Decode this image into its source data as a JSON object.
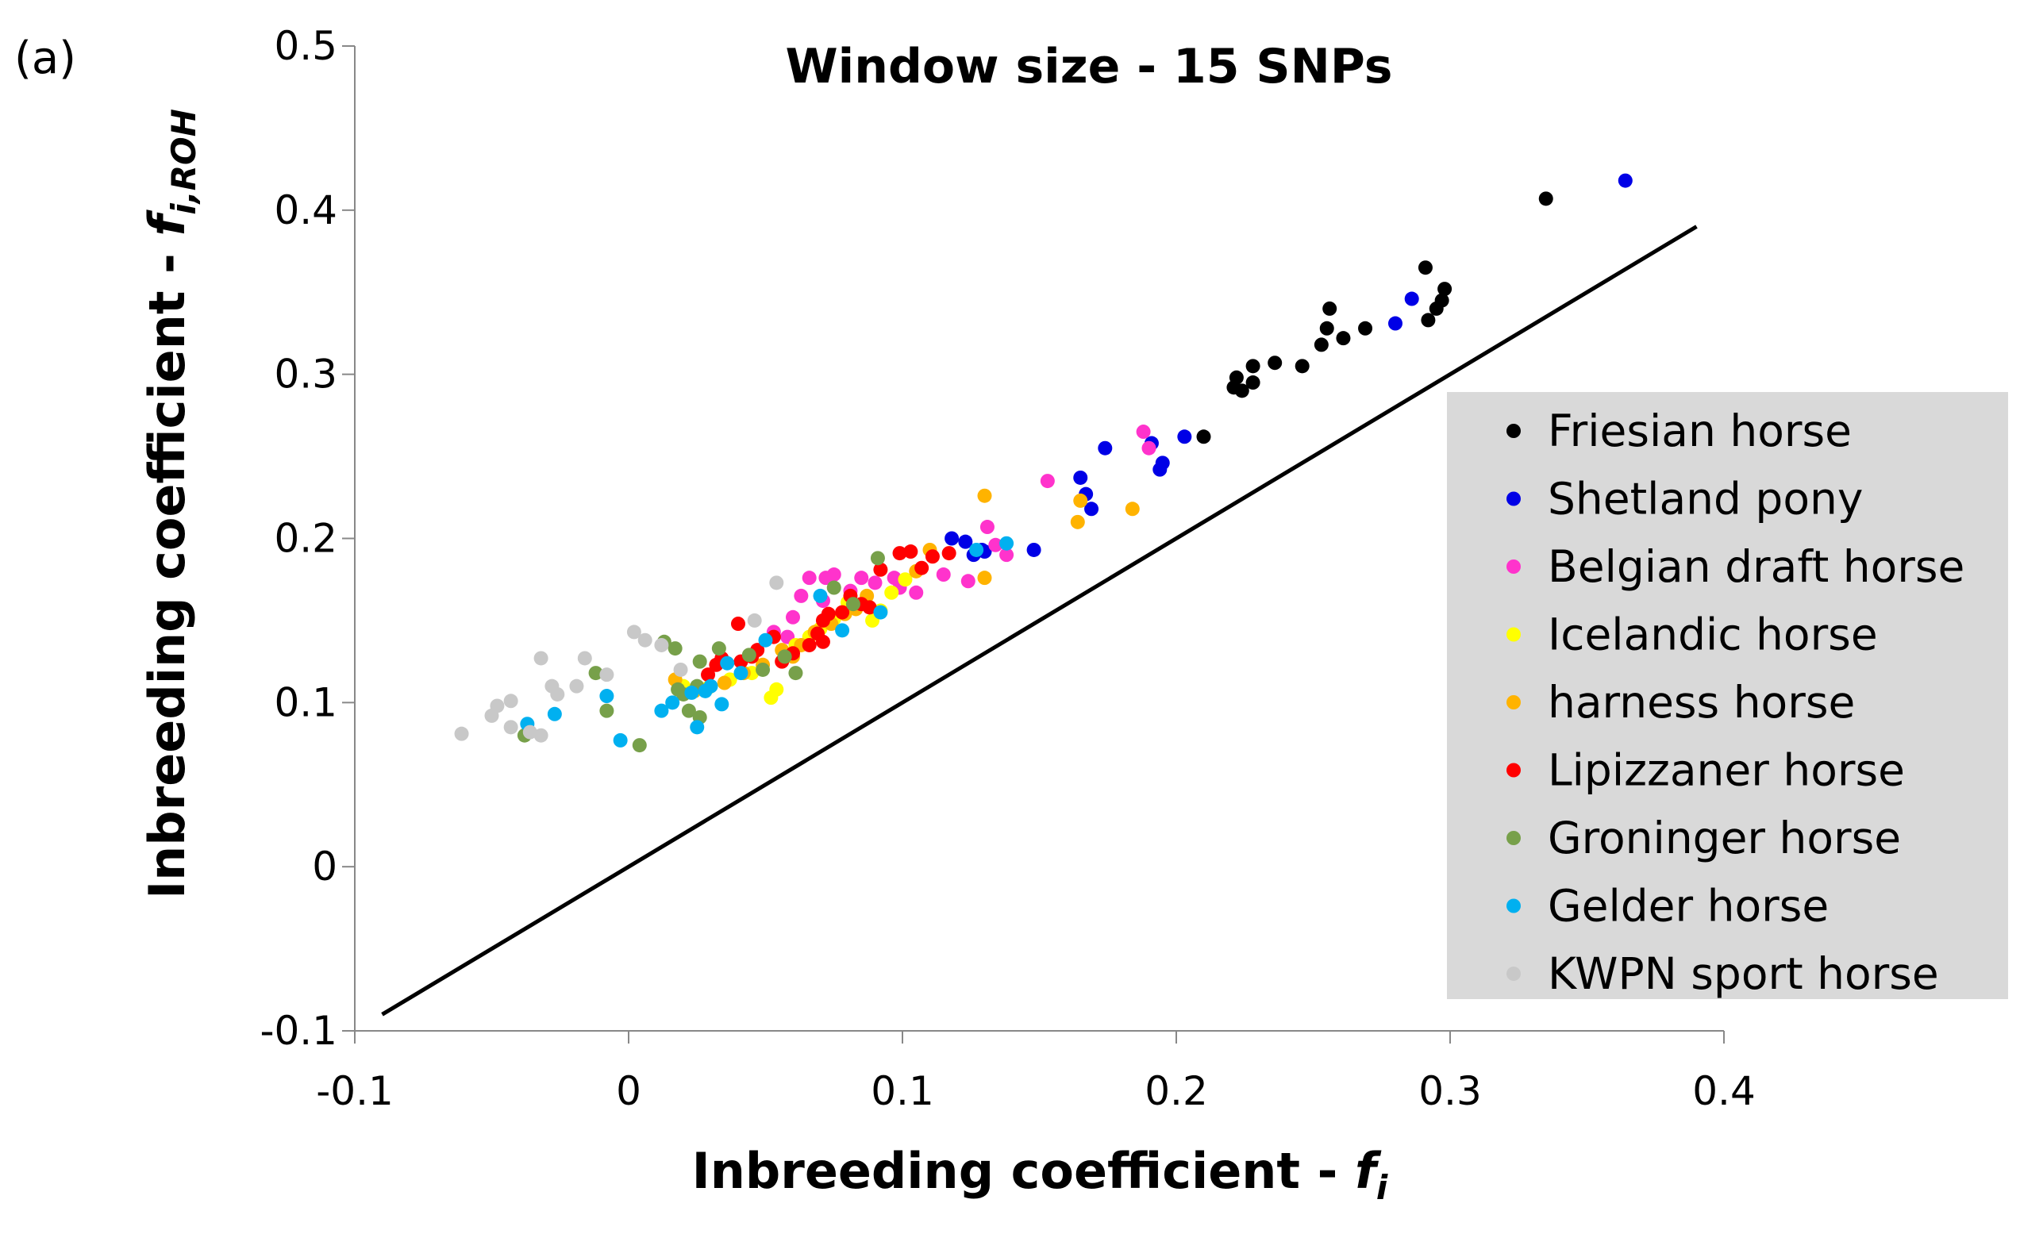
{
  "chart_data": {
    "type": "scatter",
    "panel_label": "(a)",
    "title": "Window size - 15 SNPs",
    "xlabel": "Inbreeding coefficient - ",
    "xlabel_var": "f",
    "xlabel_sub": "i",
    "ylabel": "Inbreeding coefficient - ",
    "ylabel_var": "f",
    "ylabel_sub": "i,ROH",
    "xlim": [
      -0.1,
      0.4
    ],
    "ylim": [
      -0.1,
      0.5
    ],
    "x_ticks": [
      -0.1,
      0,
      0.1,
      0.2,
      0.3,
      0.4
    ],
    "x_tick_labels": [
      "-0.1",
      "0",
      "0.1",
      "0.2",
      "0.3",
      "0.4"
    ],
    "y_ticks": [
      -0.1,
      0,
      0.1,
      0.2,
      0.3,
      0.4,
      0.5
    ],
    "y_tick_labels": [
      "-0.1",
      "0",
      "0.1",
      "0.2",
      "0.3",
      "0.4",
      "0.5"
    ],
    "grid": false,
    "legend_position": "right",
    "reference_line": {
      "x": [
        -0.09,
        0.39
      ],
      "y": [
        -0.09,
        0.39
      ]
    },
    "series": [
      {
        "name": "Friesian horse",
        "color": "#000000",
        "points": [
          [
            0.335,
            0.407
          ],
          [
            0.291,
            0.365
          ],
          [
            0.298,
            0.352
          ],
          [
            0.297,
            0.345
          ],
          [
            0.295,
            0.34
          ],
          [
            0.292,
            0.333
          ],
          [
            0.256,
            0.34
          ],
          [
            0.255,
            0.328
          ],
          [
            0.253,
            0.318
          ],
          [
            0.261,
            0.322
          ],
          [
            0.269,
            0.328
          ],
          [
            0.246,
            0.305
          ],
          [
            0.236,
            0.307
          ],
          [
            0.228,
            0.305
          ],
          [
            0.222,
            0.298
          ],
          [
            0.221,
            0.292
          ],
          [
            0.224,
            0.29
          ],
          [
            0.228,
            0.295
          ],
          [
            0.21,
            0.262
          ]
        ]
      },
      {
        "name": "Shetland pony",
        "color": "#0000E6",
        "points": [
          [
            0.364,
            0.418
          ],
          [
            0.286,
            0.346
          ],
          [
            0.28,
            0.331
          ],
          [
            0.203,
            0.262
          ],
          [
            0.191,
            0.258
          ],
          [
            0.195,
            0.246
          ],
          [
            0.194,
            0.242
          ],
          [
            0.174,
            0.255
          ],
          [
            0.165,
            0.237
          ],
          [
            0.167,
            0.227
          ],
          [
            0.169,
            0.218
          ],
          [
            0.148,
            0.193
          ],
          [
            0.129,
            0.193
          ],
          [
            0.126,
            0.19
          ],
          [
            0.123,
            0.198
          ],
          [
            0.118,
            0.2
          ],
          [
            0.13,
            0.192
          ]
        ]
      },
      {
        "name": "Belgian draft horse",
        "color": "#FF33CC",
        "points": [
          [
            0.188,
            0.265
          ],
          [
            0.19,
            0.255
          ],
          [
            0.153,
            0.235
          ],
          [
            0.131,
            0.207
          ],
          [
            0.138,
            0.19
          ],
          [
            0.134,
            0.196
          ],
          [
            0.124,
            0.174
          ],
          [
            0.115,
            0.178
          ],
          [
            0.105,
            0.167
          ],
          [
            0.099,
            0.17
          ],
          [
            0.097,
            0.176
          ],
          [
            0.09,
            0.173
          ],
          [
            0.085,
            0.176
          ],
          [
            0.081,
            0.168
          ],
          [
            0.075,
            0.178
          ],
          [
            0.072,
            0.176
          ],
          [
            0.066,
            0.176
          ],
          [
            0.071,
            0.162
          ],
          [
            0.063,
            0.165
          ],
          [
            0.06,
            0.152
          ],
          [
            0.058,
            0.14
          ],
          [
            0.053,
            0.143
          ]
        ]
      },
      {
        "name": "Icelandic horse",
        "color": "#FFFF00",
        "points": [
          [
            0.101,
            0.175
          ],
          [
            0.096,
            0.167
          ],
          [
            0.092,
            0.156
          ],
          [
            0.089,
            0.15
          ],
          [
            0.08,
            0.161
          ],
          [
            0.075,
            0.151
          ],
          [
            0.07,
            0.145
          ],
          [
            0.066,
            0.14
          ],
          [
            0.061,
            0.135
          ],
          [
            0.057,
            0.128
          ],
          [
            0.054,
            0.108
          ],
          [
            0.052,
            0.103
          ],
          [
            0.045,
            0.118
          ],
          [
            0.037,
            0.114
          ],
          [
            0.029,
            0.109
          ],
          [
            0.02,
            0.11
          ]
        ]
      },
      {
        "name": "harness horse",
        "color": "#FFB300",
        "points": [
          [
            0.13,
            0.226
          ],
          [
            0.165,
            0.223
          ],
          [
            0.164,
            0.21
          ],
          [
            0.184,
            0.218
          ],
          [
            0.13,
            0.176
          ],
          [
            0.105,
            0.18
          ],
          [
            0.11,
            0.193
          ],
          [
            0.087,
            0.165
          ],
          [
            0.083,
            0.157
          ],
          [
            0.079,
            0.154
          ],
          [
            0.074,
            0.148
          ],
          [
            0.068,
            0.143
          ],
          [
            0.063,
            0.135
          ],
          [
            0.06,
            0.128
          ],
          [
            0.056,
            0.132
          ],
          [
            0.049,
            0.123
          ],
          [
            0.042,
            0.118
          ],
          [
            0.035,
            0.112
          ],
          [
            0.024,
            0.107
          ],
          [
            0.017,
            0.114
          ]
        ]
      },
      {
        "name": "Lipizzaner horse",
        "color": "#FF0000",
        "points": [
          [
            0.117,
            0.191
          ],
          [
            0.111,
            0.189
          ],
          [
            0.103,
            0.192
          ],
          [
            0.099,
            0.191
          ],
          [
            0.107,
            0.182
          ],
          [
            0.092,
            0.181
          ],
          [
            0.088,
            0.158
          ],
          [
            0.085,
            0.16
          ],
          [
            0.081,
            0.165
          ],
          [
            0.078,
            0.155
          ],
          [
            0.073,
            0.154
          ],
          [
            0.071,
            0.15
          ],
          [
            0.069,
            0.142
          ],
          [
            0.066,
            0.135
          ],
          [
            0.071,
            0.137
          ],
          [
            0.06,
            0.13
          ],
          [
            0.056,
            0.125
          ],
          [
            0.053,
            0.14
          ],
          [
            0.047,
            0.132
          ],
          [
            0.045,
            0.128
          ],
          [
            0.041,
            0.125
          ],
          [
            0.04,
            0.148
          ],
          [
            0.034,
            0.127
          ],
          [
            0.032,
            0.123
          ],
          [
            0.029,
            0.117
          ]
        ]
      },
      {
        "name": "Groninger horse",
        "color": "#77A04A",
        "points": [
          [
            0.091,
            0.188
          ],
          [
            0.082,
            0.16
          ],
          [
            0.075,
            0.17
          ],
          [
            0.057,
            0.128
          ],
          [
            0.061,
            0.118
          ],
          [
            0.049,
            0.12
          ],
          [
            0.044,
            0.129
          ],
          [
            0.033,
            0.133
          ],
          [
            0.026,
            0.125
          ],
          [
            0.025,
            0.11
          ],
          [
            0.02,
            0.105
          ],
          [
            0.018,
            0.108
          ],
          [
            0.013,
            0.137
          ],
          [
            0.017,
            0.133
          ],
          [
            0.022,
            0.095
          ],
          [
            0.026,
            0.091
          ],
          [
            0.004,
            0.074
          ],
          [
            -0.008,
            0.095
          ],
          [
            -0.012,
            0.118
          ],
          [
            -0.038,
            0.08
          ]
        ]
      },
      {
        "name": "Gelder horse",
        "color": "#00B0F0",
        "points": [
          [
            0.138,
            0.197
          ],
          [
            0.127,
            0.193
          ],
          [
            0.092,
            0.155
          ],
          [
            0.078,
            0.144
          ],
          [
            0.07,
            0.165
          ],
          [
            0.05,
            0.138
          ],
          [
            0.041,
            0.118
          ],
          [
            0.036,
            0.124
          ],
          [
            0.034,
            0.099
          ],
          [
            0.03,
            0.11
          ],
          [
            0.028,
            0.107
          ],
          [
            0.025,
            0.085
          ],
          [
            0.023,
            0.106
          ],
          [
            0.016,
            0.1
          ],
          [
            0.012,
            0.095
          ],
          [
            -0.003,
            0.077
          ],
          [
            -0.008,
            0.104
          ],
          [
            -0.027,
            0.093
          ],
          [
            -0.037,
            0.087
          ]
        ]
      },
      {
        "name": "KWPN sport horse",
        "color": "#C8C8C8",
        "points": [
          [
            0.054,
            0.173
          ],
          [
            0.046,
            0.15
          ],
          [
            0.019,
            0.12
          ],
          [
            0.012,
            0.135
          ],
          [
            0.006,
            0.138
          ],
          [
            0.002,
            0.143
          ],
          [
            -0.008,
            0.117
          ],
          [
            -0.016,
            0.127
          ],
          [
            -0.019,
            0.11
          ],
          [
            -0.032,
            0.127
          ],
          [
            -0.028,
            0.11
          ],
          [
            -0.026,
            0.105
          ],
          [
            -0.043,
            0.101
          ],
          [
            -0.048,
            0.098
          ],
          [
            -0.05,
            0.092
          ],
          [
            -0.043,
            0.085
          ],
          [
            -0.036,
            0.082
          ],
          [
            -0.032,
            0.08
          ],
          [
            -0.061,
            0.081
          ]
        ]
      }
    ]
  }
}
